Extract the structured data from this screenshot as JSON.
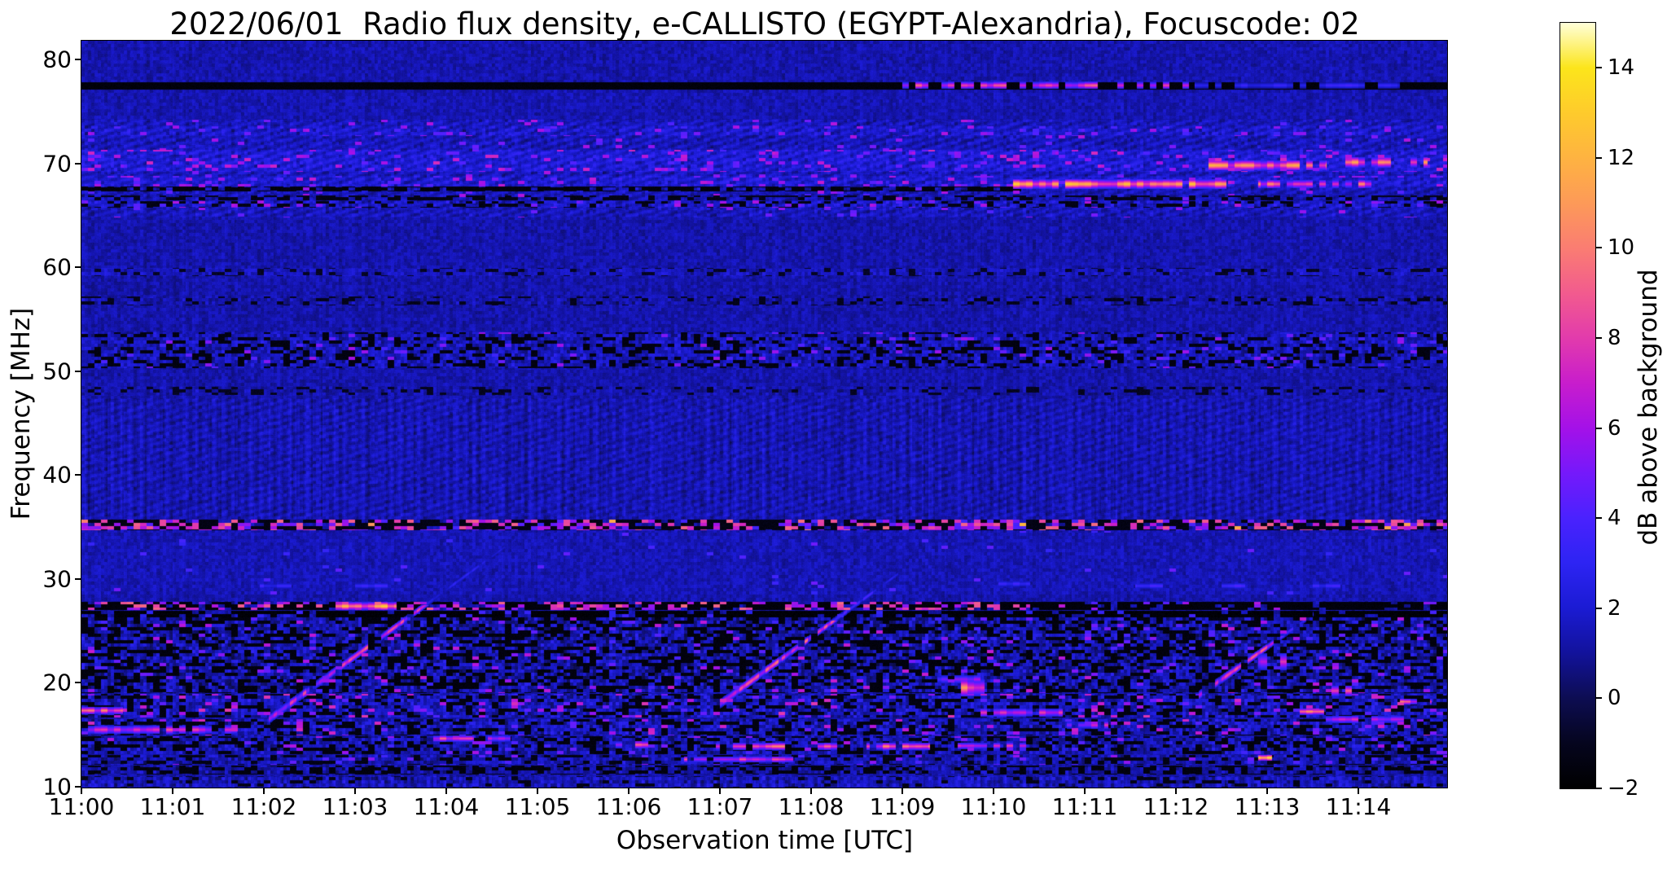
{
  "chart_data": {
    "type": "heatmap",
    "subtype": "radio-spectrogram",
    "title": "2022/06/01  Radio flux density, e-CALLISTO (EGYPT-Alexandria), Focuscode: 02",
    "xlabel": "Observation time [UTC]",
    "ylabel": "Frequency [MHz]",
    "x_range_minutes_after_1100": [
      0,
      14.97
    ],
    "x_tick_labels": [
      "11:00",
      "11:01",
      "11:02",
      "11:03",
      "11:04",
      "11:05",
      "11:06",
      "11:07",
      "11:08",
      "11:09",
      "11:10",
      "11:11",
      "11:12",
      "11:13",
      "11:14"
    ],
    "x_tick_minutes": [
      0,
      1,
      2,
      3,
      4,
      5,
      6,
      7,
      8,
      9,
      10,
      11,
      12,
      13,
      14
    ],
    "y_range_mhz": [
      9.9,
      81.9
    ],
    "y_ticks_mhz": [
      80,
      70,
      60,
      50,
      40,
      30,
      20,
      10
    ],
    "grid": false,
    "colorbar": {
      "label": "dB above background",
      "range": [
        -2,
        15
      ],
      "tick_values": [
        14,
        12,
        10,
        8,
        6,
        4,
        2,
        0,
        -2
      ],
      "tick_labels": [
        "14",
        "12",
        "10",
        "8",
        "6",
        "4",
        "2",
        "0",
        "−2"
      ],
      "colormap": "gnuplot2-like (black-blue-violet-magenta-orange-yellow-white)",
      "stops": [
        [
          -2,
          "#000000"
        ],
        [
          -1,
          "#05051e"
        ],
        [
          0,
          "#0d0d52"
        ],
        [
          1,
          "#12129b"
        ],
        [
          2,
          "#1b1bd3"
        ],
        [
          3,
          "#2d24f3"
        ],
        [
          4,
          "#4a22fe"
        ],
        [
          5,
          "#7519fb"
        ],
        [
          6,
          "#a411e8"
        ],
        [
          7,
          "#c81dcc"
        ],
        [
          8,
          "#e23bac"
        ],
        [
          9,
          "#f25b8e"
        ],
        [
          10,
          "#fa7d72"
        ],
        [
          11,
          "#fd9a58"
        ],
        [
          12,
          "#feb341"
        ],
        [
          13,
          "#fecb2c"
        ],
        [
          14,
          "#fce51b"
        ],
        [
          15,
          "#ffffd9"
        ]
      ]
    },
    "background_db": {
      "mean": 1.3,
      "cell_noise": 1.1,
      "pixel_noise": 0.45
    },
    "bands": [
      {
        "f0": 77.9,
        "f1": 81.9,
        "add": 0.05
      },
      {
        "f0": 77.1,
        "f1": 77.8,
        "dark_p": 1,
        "dark_v": -1.6
      },
      {
        "f0": 74.3,
        "f1": 77.0,
        "add": 0.1
      },
      {
        "f0": 64.8,
        "f1": 74.2,
        "add": 0.25,
        "hatch": 0.4,
        "cn": 0.5,
        "sp_p": 0.035,
        "sp0": 4,
        "sp1": 6.5
      },
      {
        "f0": 72.6,
        "f1": 73.6,
        "add": 0.3,
        "cn": 0.6,
        "sp_p": 0.07,
        "sp0": 3.5,
        "sp1": 6
      },
      {
        "f0": 69.2,
        "f1": 71.3,
        "add": 0.55,
        "cn": 0.6,
        "sp_p": 0.1,
        "sp0": 4,
        "sp1": 7.5
      },
      {
        "f0": 67.8,
        "f1": 68.8,
        "add": 0.45,
        "cn": 0.6,
        "sp_p": 0.09,
        "sp0": 4,
        "sp1": 7
      },
      {
        "f0": 67.3,
        "f1": 67.75,
        "t0": 0,
        "t1": 10.3,
        "dark_p": 0.75,
        "dark_v": -1.5
      },
      {
        "f0": 66.4,
        "f1": 66.9,
        "dark_p": 0.5,
        "dark_v": -1.2
      },
      {
        "f0": 65.7,
        "f1": 66.35,
        "add": 0.3,
        "cn": 0.9,
        "dark_p": 0.25,
        "dark_v": -1.3,
        "sp_p": 0.06,
        "sp0": 4,
        "sp1": 7
      },
      {
        "f0": 59.1,
        "f1": 59.9,
        "add": 0.35,
        "cn": 0.7,
        "dark_p": 0.18,
        "dark_v": -0.9
      },
      {
        "f0": 56.3,
        "f1": 57.2,
        "cn": 0.8,
        "dark_p": 0.22,
        "dark_v": -1.1
      },
      {
        "f0": 50.3,
        "f1": 53.7,
        "add": 0.3,
        "cn": 1.1,
        "dark_p": 0.28,
        "dark_v": -1.4,
        "sp_p": 0.04,
        "sp0": 3.5,
        "sp1": 6
      },
      {
        "f0": 47.7,
        "f1": 48.5,
        "cn": 0.7,
        "dark_p": 0.2,
        "dark_v": -1.0
      },
      {
        "f0": 35.8,
        "f1": 47.4,
        "add": 0.1,
        "hatch": 0.3,
        "vstripe": 0.45
      },
      {
        "f0": 34.7,
        "f1": 35.7,
        "dark_p": 0.45,
        "dark_v": -1.3,
        "sp_p": 0.42,
        "sp0": 3.5,
        "sp1": 9.5,
        "hot_p": 0.1,
        "hot_add": 3
      },
      {
        "f0": 28.5,
        "f1": 34.6,
        "add": 0.15,
        "sp_p": 0.012,
        "sp0": 3,
        "sp1": 5
      },
      {
        "f0": 26.95,
        "f1": 27.75,
        "t0": 0,
        "t1": 10.4,
        "dark_p": 0.55,
        "dark_v": -1.6,
        "sp_p": 0.3,
        "sp0": 5,
        "sp1": 9.5
      },
      {
        "f0": 26.95,
        "f1": 27.75,
        "t0": 10.4,
        "t1": 15,
        "dark_p": 0.78,
        "dark_v": -1.6,
        "sp_p": 0.07,
        "sp0": 4,
        "sp1": 8
      },
      {
        "f0": 26.3,
        "f1": 26.9,
        "dark_p": 0.8,
        "dark_v": -1.7,
        "sp_p": 0.08,
        "sp0": 2.5,
        "sp1": 4
      },
      {
        "f0": 19.0,
        "f1": 26.25,
        "add": 0.1,
        "cn": 1.6,
        "dark_p": 0.38,
        "dark_v": -1.5,
        "sp_p": 0.05,
        "sp0": 3.5,
        "sp1": 7
      },
      {
        "f0": 16.6,
        "f1": 18.9,
        "add": 0.35,
        "cn": 1.5,
        "dark_p": 0.3,
        "dark_v": -1.4,
        "sp_p": 0.09,
        "sp0": 4,
        "sp1": 8
      },
      {
        "f0": 14.9,
        "f1": 16.5,
        "add": 0.3,
        "cn": 1.4,
        "dark_p": 0.32,
        "dark_v": -1.4,
        "sp_p": 0.07,
        "sp0": 4,
        "sp1": 7.5
      },
      {
        "f0": 13.1,
        "f1": 14.8,
        "add": 0.2,
        "cn": 1.4,
        "dark_p": 0.35,
        "dark_v": -1.5,
        "sp_p": 0.05,
        "sp0": 3.5,
        "sp1": 6.5
      },
      {
        "f0": 12.1,
        "f1": 13.0,
        "add": 0.15,
        "cn": 1.2,
        "dark_p": 0.3,
        "dark_v": -1.3,
        "sp_p": 0.04,
        "sp0": 3.5,
        "sp1": 6
      },
      {
        "f0": 11.1,
        "f1": 12.0,
        "cn": 1.0,
        "dark_p": 0.45,
        "dark_v": -1.5
      },
      {
        "f0": 9.8,
        "f1": 11.0,
        "add": 0.25,
        "cn": 1.1,
        "vstripe": 0.5,
        "dark_p": 0.15,
        "dark_v": -1.2
      }
    ],
    "streaks": [
      {
        "f": 77.5,
        "fw": 0.35,
        "t0": 9.0,
        "t1": 12.15,
        "v": 9.5,
        "gap": 0.38
      },
      {
        "f": 77.5,
        "fw": 0.3,
        "t0": 12.2,
        "t1": 14.45,
        "v": 3.8,
        "gap": 0.3
      },
      {
        "f": 68.0,
        "fw": 0.45,
        "t0": 10.2,
        "t1": 12.55,
        "v": 12.5,
        "gap": 0.1
      },
      {
        "f": 68.0,
        "fw": 0.4,
        "t0": 12.9,
        "t1": 14.25,
        "v": 10,
        "gap": 0.25
      },
      {
        "f": 69.8,
        "fw": 0.5,
        "t0": 12.35,
        "t1": 13.65,
        "v": 11.5,
        "gap": 0.1
      },
      {
        "f": 70.1,
        "fw": 0.5,
        "t0": 13.85,
        "t1": 14.75,
        "v": 11,
        "gap": 0.15
      },
      {
        "f": 29.3,
        "fw": 0.3,
        "t0": 1.95,
        "t1": 2.3,
        "v": 4,
        "gap": 0
      },
      {
        "f": 29.3,
        "fw": 0.3,
        "t0": 3.0,
        "t1": 3.35,
        "v": 4,
        "gap": 0
      },
      {
        "f": 29.5,
        "fw": 0.3,
        "t0": 10.05,
        "t1": 10.4,
        "v": 4.2,
        "gap": 0
      },
      {
        "f": 29.3,
        "fw": 0.3,
        "t0": 11.55,
        "t1": 11.85,
        "v": 4.2,
        "gap": 0
      },
      {
        "f": 29.3,
        "fw": 0.3,
        "t0": 12.5,
        "t1": 12.75,
        "v": 4.2,
        "gap": 0
      },
      {
        "f": 29.3,
        "fw": 0.3,
        "t0": 13.5,
        "t1": 13.8,
        "v": 4.2,
        "gap": 0
      },
      {
        "f": 17.3,
        "fw": 0.35,
        "t0": 0.0,
        "t1": 0.45,
        "v": 10,
        "gap": 0
      },
      {
        "f": 15.45,
        "fw": 0.4,
        "t0": 0.0,
        "t1": 1.7,
        "v": 8.5,
        "gap": 0.3
      },
      {
        "f": 14.6,
        "fw": 0.3,
        "t0": 3.85,
        "t1": 4.3,
        "v": 9,
        "gap": 0.2
      },
      {
        "f": 14.6,
        "fw": 0.3,
        "t0": 4.45,
        "t1": 4.7,
        "v": 8,
        "gap": 0
      },
      {
        "f": 14.0,
        "fw": 0.35,
        "t0": 5.85,
        "t1": 6.35,
        "v": 8.5,
        "gap": 0.3
      },
      {
        "f": 13.85,
        "fw": 0.35,
        "t0": 6.95,
        "t1": 8.35,
        "v": 11,
        "gap": 0.25
      },
      {
        "f": 13.85,
        "fw": 0.35,
        "t0": 8.6,
        "t1": 9.3,
        "v": 10.5,
        "gap": 0.25
      },
      {
        "f": 13.9,
        "fw": 0.3,
        "t0": 9.6,
        "t1": 10.35,
        "v": 8.5,
        "gap": 0.3
      },
      {
        "f": 12.6,
        "fw": 0.3,
        "t0": 6.6,
        "t1": 7.8,
        "v": 8.5,
        "gap": 0.35
      },
      {
        "f": 16.45,
        "fw": 0.35,
        "t0": 13.6,
        "t1": 14.55,
        "v": 7.5,
        "gap": 0.2
      },
      {
        "f": 17.2,
        "fw": 0.3,
        "t0": 13.35,
        "t1": 13.62,
        "v": 12.5,
        "gap": 0
      },
      {
        "f": 19.2,
        "fw": 0.5,
        "t0": 13.7,
        "t1": 13.95,
        "v": 11.5,
        "gap": 0.25
      },
      {
        "f": 18.15,
        "fw": 0.3,
        "t0": 14.45,
        "t1": 14.8,
        "v": 10,
        "gap": 0.2
      },
      {
        "f": 27.35,
        "fw": 0.4,
        "t0": 2.78,
        "t1": 3.45,
        "v": 13,
        "gap": 0
      },
      {
        "f": 17.1,
        "fw": 0.4,
        "t0": 9.85,
        "t1": 10.75,
        "v": 8,
        "gap": 0.3
      },
      {
        "f": 15.9,
        "fw": 0.35,
        "t0": 10.8,
        "t1": 11.25,
        "v": 8,
        "gap": 0.3
      },
      {
        "f": 20.3,
        "fw": 0.4,
        "t0": 9.38,
        "t1": 9.85,
        "v": 6,
        "gap": 0.3
      },
      {
        "f": 12.75,
        "fw": 0.3,
        "t0": 12.9,
        "t1": 13.05,
        "v": 14,
        "gap": 0
      },
      {
        "f": 19.5,
        "fw": 0.8,
        "t0": 9.55,
        "t1": 9.9,
        "v": 10.5,
        "gap": 0.25
      },
      {
        "f": 22.0,
        "fw": 0.8,
        "t0": 12.9,
        "t1": 13.25,
        "v": 8.5,
        "gap": 0.3
      }
    ],
    "bursts": [
      {
        "t0": 2.05,
        "f0": 16.5,
        "t1": 4.75,
        "f1": 33.8,
        "v": 10.5,
        "fade_f": 27.5,
        "fade_k": 0.35
      },
      {
        "t0": 7.0,
        "f0": 18.0,
        "t1": 8.95,
        "f1": 30.5,
        "v": 10.5,
        "fade_f": 26,
        "fade_k": 0.45
      },
      {
        "t0": 12.25,
        "f0": 18.8,
        "t1": 13.5,
        "f1": 26.6,
        "v": 9.5,
        "fade_f": 24.5,
        "fade_k": 0.55
      }
    ]
  }
}
